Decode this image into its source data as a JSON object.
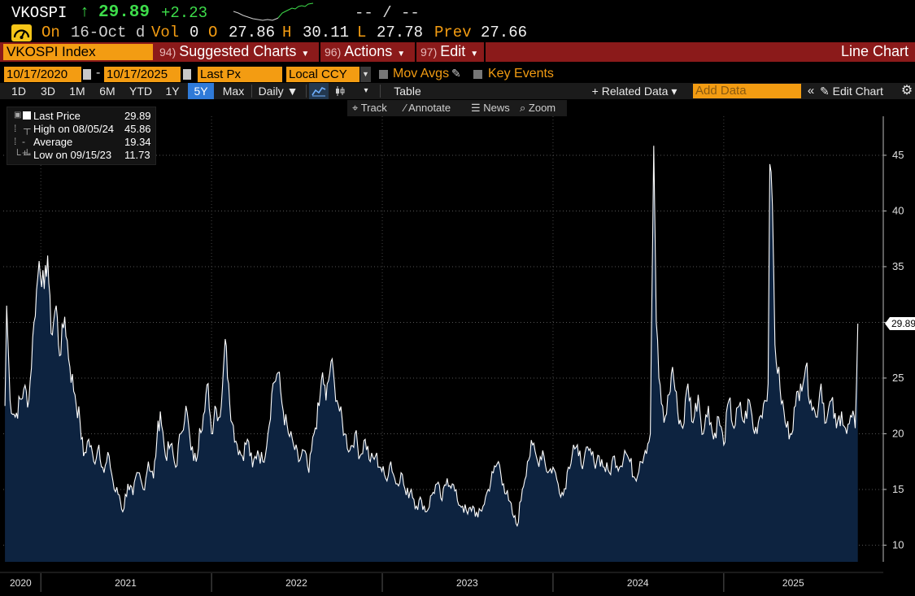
{
  "quote": {
    "ticker": "VKOSPI",
    "arrow": "↑",
    "last": "29.89",
    "change": "+2.23",
    "bid_ask": "-- / --"
  },
  "quote_line2": {
    "on_label": "On",
    "date": "16-Oct d",
    "vol_label": "Vol",
    "vol": "0",
    "o_label": "O",
    "open": "27.86",
    "h_label": "H",
    "high": "30.11",
    "l_label": "L",
    "low": "27.78",
    "prev_label": "Prev",
    "prev": "27.66"
  },
  "menubar": {
    "security": "VKOSPI Index",
    "suggested_num": "94)",
    "suggested": "Suggested Charts",
    "actions_num": "96)",
    "actions": "Actions",
    "edit_num": "97)",
    "edit": "Edit",
    "chart_type": "Line Chart"
  },
  "daterow": {
    "start_date": "10/17/2020",
    "separator": "-",
    "end_date": "10/17/2025",
    "field": "Last Px",
    "currency": "Local CCY",
    "mov_avgs": "Mov Avgs",
    "key_events": "Key Events"
  },
  "toolbar": {
    "periods": [
      "1D",
      "3D",
      "1M",
      "6M",
      "YTD",
      "1Y",
      "5Y",
      "Max"
    ],
    "active_period": "5Y",
    "frequency": "Daily ▼",
    "table": "Table",
    "related_data": "+ Related Data ▾",
    "add_data_placeholder": "Add Data",
    "edit_chart": "Edit Chart"
  },
  "subbar": {
    "track": "Track",
    "annotate": "Annotate",
    "news": "News",
    "zoom": "Zoom"
  },
  "legend": {
    "rows": [
      {
        "name": "Last Price",
        "value": "29.89"
      },
      {
        "name": "High on 08/05/24",
        "value": "45.86"
      },
      {
        "name": "Average",
        "value": "19.34"
      },
      {
        "name": "Low on 09/15/23",
        "value": "11.73"
      }
    ]
  },
  "colors": {
    "accent_orange": "#f39c12",
    "menu_red": "#8b1a1a",
    "up_green": "#3ddc4a",
    "area_fill": "#0d2340",
    "line": "#ffffff"
  },
  "chart_data": {
    "type": "area",
    "series": [
      {
        "name": "Last Price"
      }
    ],
    "x_ticks": [
      "2020",
      "2021",
      "2022",
      "2023",
      "2024",
      "2025"
    ],
    "y_ticks": [
      10,
      15,
      20,
      25,
      30,
      35,
      40,
      45
    ],
    "ylim": [
      8.5,
      48.5
    ],
    "last_value_label": "29.89",
    "grid": "dotted",
    "points": [
      [
        2020.79,
        22.5
      ],
      [
        2020.8,
        31.5
      ],
      [
        2020.82,
        23.0
      ],
      [
        2020.85,
        21.5
      ],
      [
        2020.9,
        24.0
      ],
      [
        2020.93,
        23.0
      ],
      [
        2020.96,
        30.0
      ],
      [
        2020.99,
        35.5
      ],
      [
        2021.02,
        33.0
      ],
      [
        2021.04,
        36.0
      ],
      [
        2021.06,
        29.0
      ],
      [
        2021.09,
        31.5
      ],
      [
        2021.11,
        27.0
      ],
      [
        2021.14,
        30.5
      ],
      [
        2021.17,
        26.0
      ],
      [
        2021.2,
        23.5
      ],
      [
        2021.23,
        21.0
      ],
      [
        2021.25,
        18.0
      ],
      [
        2021.28,
        19.5
      ],
      [
        2021.31,
        17.5
      ],
      [
        2021.34,
        19.0
      ],
      [
        2021.37,
        16.5
      ],
      [
        2021.4,
        18.0
      ],
      [
        2021.43,
        15.0
      ],
      [
        2021.46,
        14.5
      ],
      [
        2021.48,
        13.0
      ],
      [
        2021.51,
        15.5
      ],
      [
        2021.54,
        14.5
      ],
      [
        2021.57,
        16.5
      ],
      [
        2021.6,
        15.0
      ],
      [
        2021.63,
        17.5
      ],
      [
        2021.66,
        16.0
      ],
      [
        2021.68,
        19.5
      ],
      [
        2021.7,
        22.0
      ],
      [
        2021.73,
        18.0
      ],
      [
        2021.76,
        19.0
      ],
      [
        2021.79,
        17.0
      ],
      [
        2021.82,
        20.0
      ],
      [
        2021.85,
        22.5
      ],
      [
        2021.88,
        18.5
      ],
      [
        2021.91,
        17.5
      ],
      [
        2021.93,
        20.5
      ],
      [
        2021.96,
        22.0
      ],
      [
        2021.98,
        24.5
      ],
      [
        2022.0,
        20.0
      ],
      [
        2022.02,
        22.5
      ],
      [
        2022.05,
        21.5
      ],
      [
        2022.07,
        26.0
      ],
      [
        2022.08,
        28.5
      ],
      [
        2022.1,
        24.5
      ],
      [
        2022.12,
        21.0
      ],
      [
        2022.15,
        19.0
      ],
      [
        2022.18,
        18.0
      ],
      [
        2022.21,
        19.5
      ],
      [
        2022.24,
        17.0
      ],
      [
        2022.27,
        18.5
      ],
      [
        2022.3,
        17.5
      ],
      [
        2022.33,
        20.0
      ],
      [
        2022.36,
        24.5
      ],
      [
        2022.39,
        25.5
      ],
      [
        2022.42,
        22.0
      ],
      [
        2022.45,
        20.0
      ],
      [
        2022.48,
        19.0
      ],
      [
        2022.51,
        17.5
      ],
      [
        2022.54,
        18.5
      ],
      [
        2022.57,
        16.5
      ],
      [
        2022.6,
        20.0
      ],
      [
        2022.63,
        22.5
      ],
      [
        2022.65,
        25.5
      ],
      [
        2022.67,
        23.0
      ],
      [
        2022.7,
        26.5
      ],
      [
        2022.72,
        24.5
      ],
      [
        2022.75,
        22.0
      ],
      [
        2022.78,
        20.0
      ],
      [
        2022.81,
        18.5
      ],
      [
        2022.84,
        20.0
      ],
      [
        2022.87,
        18.0
      ],
      [
        2022.9,
        19.5
      ],
      [
        2022.93,
        17.5
      ],
      [
        2022.96,
        18.0
      ],
      [
        2022.99,
        17.0
      ],
      [
        2023.02,
        16.0
      ],
      [
        2023.05,
        17.5
      ],
      [
        2023.08,
        15.5
      ],
      [
        2023.11,
        16.5
      ],
      [
        2023.14,
        14.5
      ],
      [
        2023.17,
        15.0
      ],
      [
        2023.2,
        13.5
      ],
      [
        2023.23,
        14.0
      ],
      [
        2023.26,
        13.0
      ],
      [
        2023.29,
        14.5
      ],
      [
        2023.32,
        15.5
      ],
      [
        2023.35,
        14.0
      ],
      [
        2023.38,
        16.0
      ],
      [
        2023.41,
        15.5
      ],
      [
        2023.44,
        14.0
      ],
      [
        2023.47,
        13.5
      ],
      [
        2023.5,
        12.8
      ],
      [
        2023.53,
        13.5
      ],
      [
        2023.56,
        12.5
      ],
      [
        2023.59,
        13.5
      ],
      [
        2023.62,
        15.0
      ],
      [
        2023.65,
        16.5
      ],
      [
        2023.68,
        17.5
      ],
      [
        2023.71,
        15.5
      ],
      [
        2023.74,
        14.0
      ],
      [
        2023.77,
        12.5
      ],
      [
        2023.79,
        11.73
      ],
      [
        2023.82,
        15.0
      ],
      [
        2023.85,
        17.5
      ],
      [
        2023.88,
        19.0
      ],
      [
        2023.91,
        17.5
      ],
      [
        2023.94,
        18.5
      ],
      [
        2023.97,
        16.5
      ],
      [
        2024.0,
        17.0
      ],
      [
        2024.03,
        15.5
      ],
      [
        2024.06,
        14.5
      ],
      [
        2024.09,
        17.0
      ],
      [
        2024.12,
        19.0
      ],
      [
        2024.15,
        18.0
      ],
      [
        2024.18,
        17.5
      ],
      [
        2024.21,
        18.5
      ],
      [
        2024.24,
        17.5
      ],
      [
        2024.27,
        18.0
      ],
      [
        2024.3,
        17.0
      ],
      [
        2024.33,
        16.5
      ],
      [
        2024.36,
        18.0
      ],
      [
        2024.39,
        17.0
      ],
      [
        2024.42,
        18.5
      ],
      [
        2024.45,
        17.5
      ],
      [
        2024.48,
        16.0
      ],
      [
        2024.51,
        17.5
      ],
      [
        2024.54,
        18.5
      ],
      [
        2024.57,
        20.0
      ],
      [
        2024.59,
        45.86
      ],
      [
        2024.605,
        30.0
      ],
      [
        2024.62,
        25.0
      ],
      [
        2024.65,
        21.0
      ],
      [
        2024.68,
        23.5
      ],
      [
        2024.7,
        26.0
      ],
      [
        2024.73,
        22.0
      ],
      [
        2024.76,
        20.5
      ],
      [
        2024.79,
        24.5
      ],
      [
        2024.82,
        21.0
      ],
      [
        2024.85,
        23.5
      ],
      [
        2024.88,
        20.0
      ],
      [
        2024.91,
        22.5
      ],
      [
        2024.94,
        19.5
      ],
      [
        2024.97,
        21.5
      ],
      [
        2025.0,
        19.0
      ],
      [
        2025.03,
        23.0
      ],
      [
        2025.06,
        20.5
      ],
      [
        2025.09,
        22.5
      ],
      [
        2025.12,
        21.0
      ],
      [
        2025.15,
        23.0
      ],
      [
        2025.18,
        20.0
      ],
      [
        2025.21,
        21.5
      ],
      [
        2025.24,
        23.0
      ],
      [
        2025.26,
        24.5
      ],
      [
        2025.27,
        44.2
      ],
      [
        2025.285,
        40.5
      ],
      [
        2025.3,
        28.0
      ],
      [
        2025.33,
        24.0
      ],
      [
        2025.36,
        21.0
      ],
      [
        2025.39,
        20.0
      ],
      [
        2025.42,
        22.5
      ],
      [
        2025.45,
        24.5
      ],
      [
        2025.48,
        26.0
      ],
      [
        2025.51,
        23.0
      ],
      [
        2025.54,
        21.5
      ],
      [
        2025.57,
        24.5
      ],
      [
        2025.6,
        21.0
      ],
      [
        2025.63,
        23.0
      ],
      [
        2025.66,
        20.5
      ],
      [
        2025.69,
        22.0
      ],
      [
        2025.72,
        20.0
      ],
      [
        2025.75,
        21.5
      ],
      [
        2025.77,
        20.5
      ],
      [
        2025.785,
        29.89
      ]
    ]
  }
}
